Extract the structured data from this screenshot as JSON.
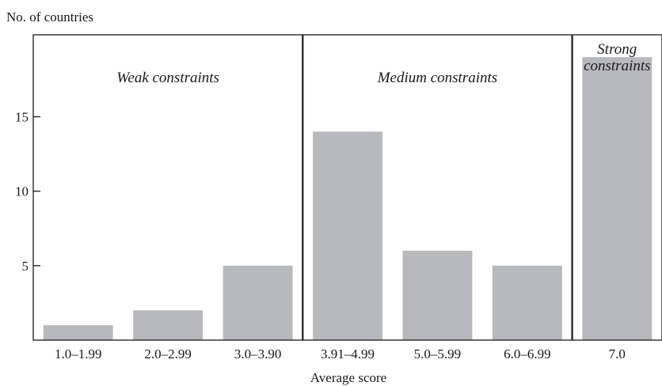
{
  "chart_data": {
    "type": "bar",
    "title": "",
    "ylabel": "No. of countries",
    "xlabel": "Average score",
    "categories": [
      "1.0–1.99",
      "2.0–2.99",
      "3.0–3.90",
      "3.91–4.99",
      "5.0–5.99",
      "6.0–6.99",
      "7.0"
    ],
    "values": [
      1,
      2,
      5,
      14,
      6,
      5,
      19
    ],
    "ylim": [
      0,
      20.5
    ],
    "yticks": [
      5,
      10,
      15
    ],
    "grid": false,
    "bar_color": "#b8b9bc",
    "groups": [
      {
        "label": "Weak constraints",
        "lines": [
          "Weak constraints"
        ],
        "first": 0,
        "last": 2
      },
      {
        "label": "Medium constraints",
        "lines": [
          "Medium constraints"
        ],
        "first": 3,
        "last": 5
      },
      {
        "label": "Strong constraints",
        "lines": [
          "Strong",
          "constraints"
        ],
        "first": 6,
        "last": 6
      }
    ]
  }
}
